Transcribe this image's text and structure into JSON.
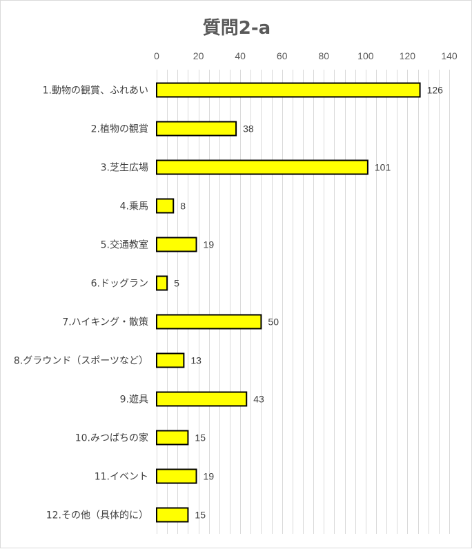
{
  "chart_data": {
    "type": "bar",
    "orientation": "horizontal",
    "title": "質問2-a",
    "categories": [
      "1.動物の観賞、ふれあい",
      "2.植物の観賞",
      "3.芝生広場",
      "4.乗馬",
      "5.交通教室",
      "6.ドッグラン",
      "7.ハイキング・散策",
      "8.グラウンド（スポーツなど）",
      "9.遊具",
      "10.みつばちの家",
      "11.イベント",
      "12.その他（具体的に）"
    ],
    "values": [
      126,
      38,
      101,
      8,
      19,
      5,
      50,
      13,
      43,
      15,
      19,
      15
    ],
    "xlim": [
      0,
      140
    ],
    "major_ticks": [
      0,
      20,
      40,
      60,
      80,
      100,
      120,
      140
    ],
    "minor_tick_step": 5,
    "axis_position": "top",
    "grid": true,
    "data_labels": true,
    "legend": "none",
    "bar_color": "#FFFF00",
    "bar_outline": "#000000"
  }
}
